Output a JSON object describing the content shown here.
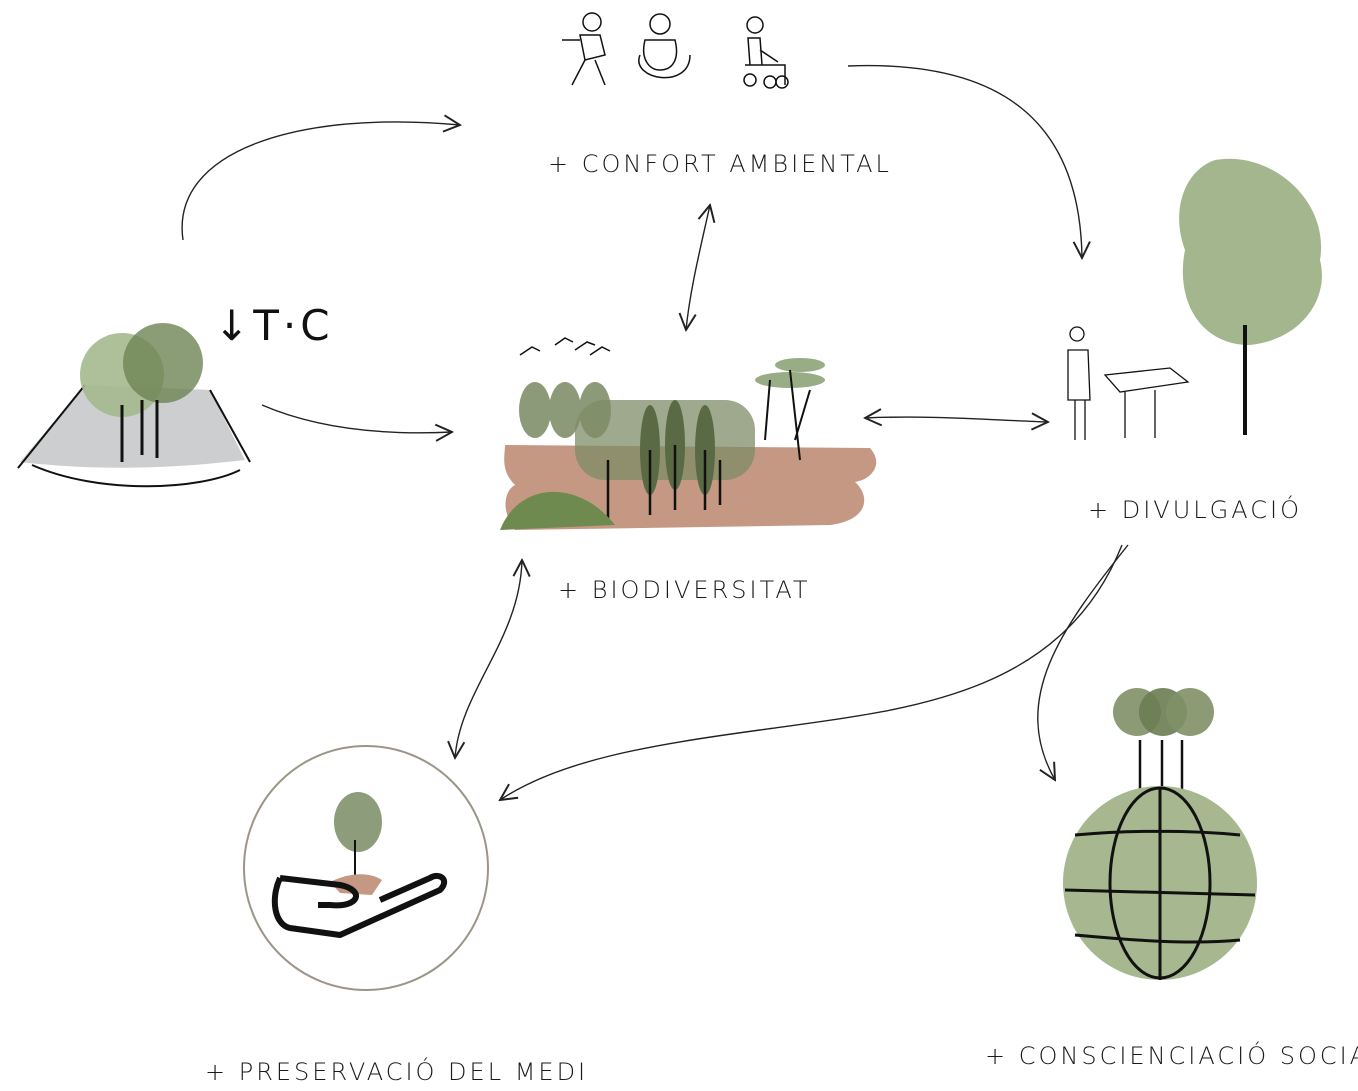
{
  "nodes": [
    {
      "label": "↓T·C"
    },
    {
      "label": "+ CONFORT AMBIENTAL"
    },
    {
      "label": "+ BIODIVERSITAT"
    },
    {
      "label": "+ DIVULGACIÓ"
    },
    {
      "label": "+ PRESERVACIÓ DEL MEDI"
    },
    {
      "label": "+ CONSCIENCIACIÓ SOCIAL"
    }
  ]
}
